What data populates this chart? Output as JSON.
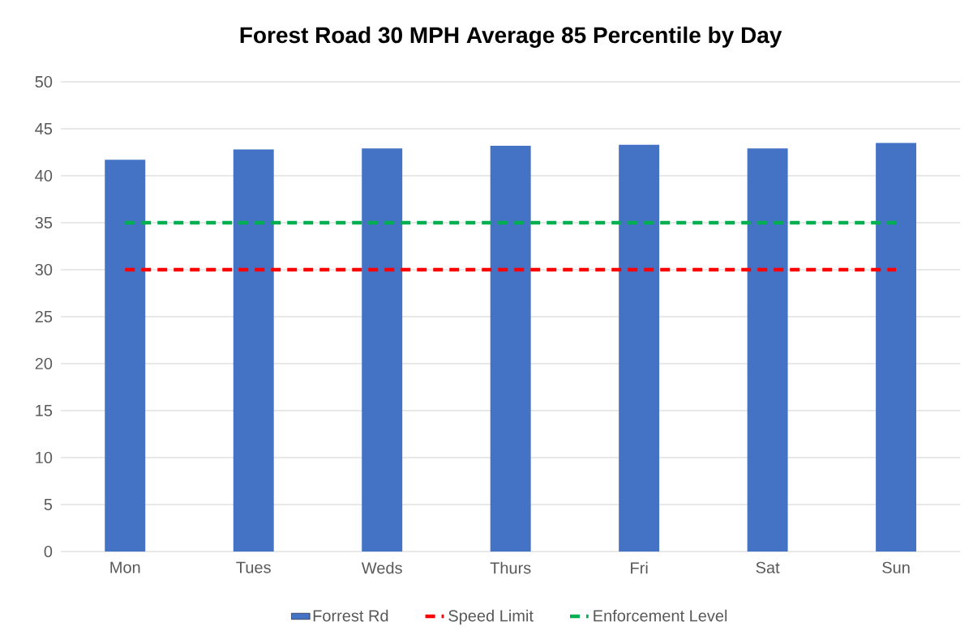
{
  "chart_data": {
    "type": "bar",
    "title": "Forest Road 30 MPH Average 85 Percentile by Day",
    "categories": [
      "Mon",
      "Tues",
      "Weds",
      "Thurs",
      "Fri",
      "Sat",
      "Sun"
    ],
    "series": [
      {
        "name": "Forrest Rd",
        "color": "#4472c4",
        "values": [
          41.7,
          42.8,
          42.9,
          43.2,
          43.3,
          42.9,
          43.5
        ]
      },
      {
        "name": "Speed Limit",
        "type": "line",
        "line_style": "dashed",
        "color": "#ff0000",
        "values": [
          30,
          30,
          30,
          30,
          30,
          30,
          30
        ]
      },
      {
        "name": "Enforcement Level",
        "type": "line",
        "line_style": "dashed",
        "color": "#00b050",
        "values": [
          35,
          35,
          35,
          35,
          35,
          35,
          35
        ]
      }
    ],
    "ylim": [
      0,
      50
    ],
    "yticks": [
      0,
      5,
      10,
      15,
      20,
      25,
      30,
      35,
      40,
      45,
      50
    ],
    "grid": "y",
    "legend": "bottom"
  }
}
